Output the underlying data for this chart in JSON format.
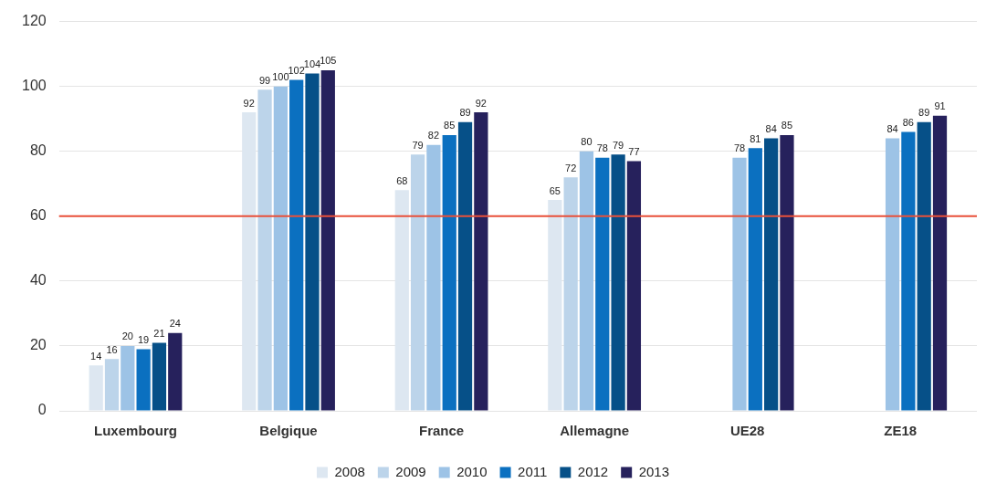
{
  "chart_data": {
    "type": "bar",
    "categories": [
      "Luxembourg",
      "Belgique",
      "France",
      "Allemagne",
      "UE28",
      "ZE18"
    ],
    "series": [
      {
        "name": "2008",
        "color": "#dde7f1",
        "values": [
          14,
          92,
          68,
          65,
          null,
          null
        ]
      },
      {
        "name": "2009",
        "color": "#bcd4ea",
        "values": [
          16,
          99,
          79,
          72,
          null,
          null
        ]
      },
      {
        "name": "2010",
        "color": "#9dc3e6",
        "values": [
          20,
          100,
          82,
          80,
          78,
          84
        ]
      },
      {
        "name": "2011",
        "color": "#0b70c0",
        "values": [
          19,
          102,
          85,
          78,
          81,
          86
        ]
      },
      {
        "name": "2012",
        "color": "#065088",
        "values": [
          21,
          104,
          89,
          79,
          84,
          89
        ]
      },
      {
        "name": "2013",
        "color": "#26215c",
        "values": [
          24,
          105,
          92,
          77,
          85,
          91
        ]
      }
    ],
    "ylim": [
      0,
      120
    ],
    "yticks": [
      0,
      20,
      40,
      60,
      80,
      100,
      120
    ],
    "grid": "y",
    "legend": "bottom",
    "data_labels": true,
    "ref_lines": [
      {
        "axis": "y",
        "value": 60,
        "color": "#e8503a"
      }
    ]
  }
}
